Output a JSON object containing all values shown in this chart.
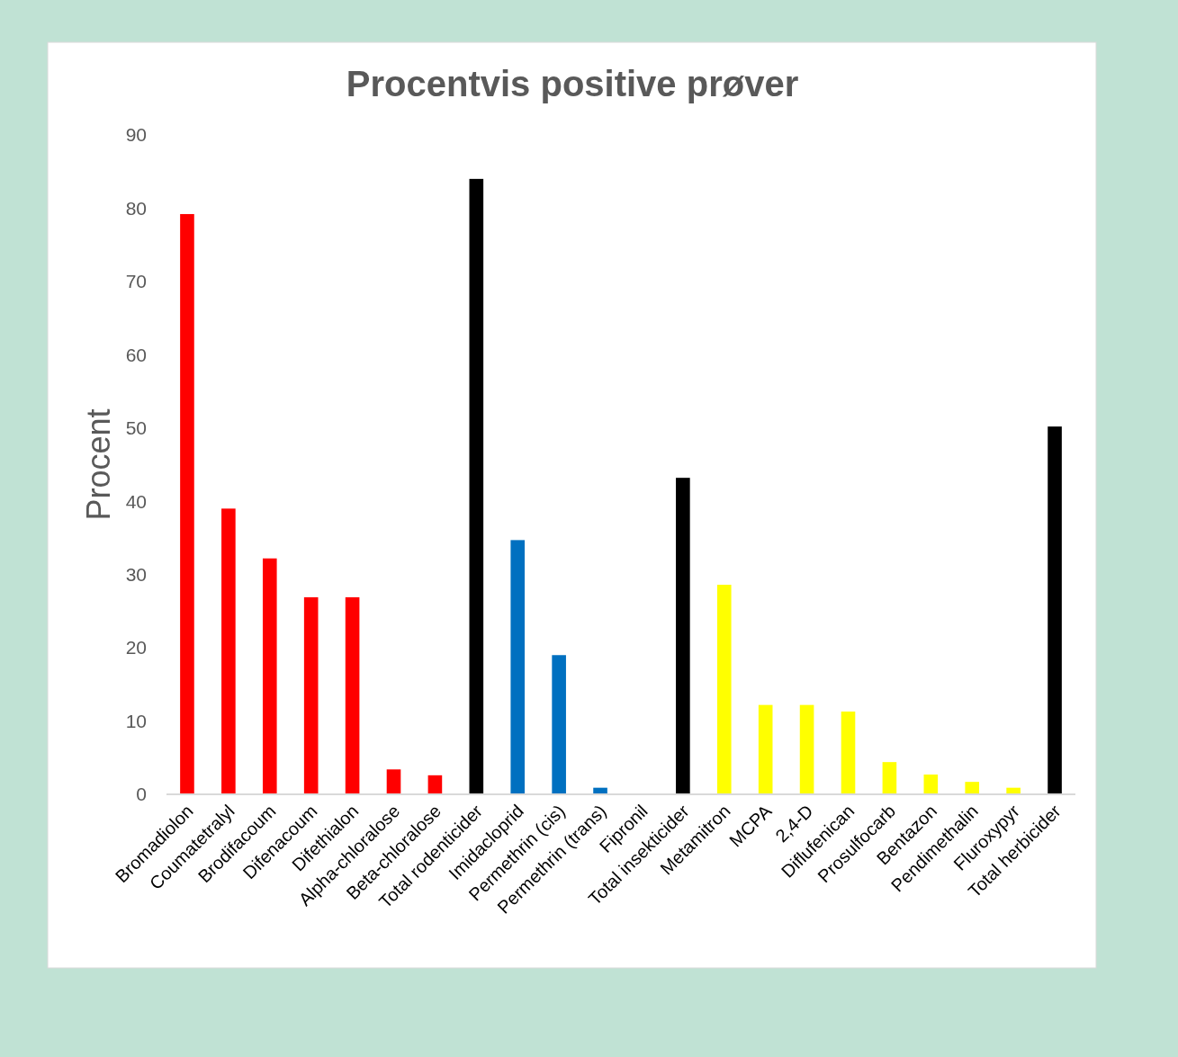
{
  "chart_data": {
    "type": "bar",
    "title": "Procentvis positive prøver",
    "ylabel": "Procent",
    "categories": [
      "Bromadiolon",
      "Coumatetralyl",
      "Brodifacoum",
      "Difenacoum",
      "Difethialon",
      "Alpha-chloralose",
      "Beta-chloralose",
      "Total rodenticider",
      "Imidacloprid",
      "Permethrin (cis)",
      "Permethrin (trans)",
      "Fipronil",
      "Total insekticider",
      "Metamitron",
      "MCPA",
      "2,4-D",
      "Diflufenican",
      "Prosulfocarb",
      "Bentazon",
      "Pendimethalin",
      "Fluroxypyr",
      "Total herbicider"
    ],
    "values": [
      79.2,
      39,
      32.2,
      26.9,
      26.9,
      3.4,
      2.6,
      84,
      34.7,
      19,
      0.9,
      0,
      43.2,
      28.6,
      12.2,
      12.2,
      11.3,
      4.4,
      2.7,
      1.7,
      0.9,
      50.2
    ],
    "colors": [
      "#ff0000",
      "#ff0000",
      "#ff0000",
      "#ff0000",
      "#ff0000",
      "#ff0000",
      "#ff0000",
      "#000000",
      "#0070c0",
      "#0070c0",
      "#0070c0",
      "#0070c0",
      "#000000",
      "#ffff00",
      "#ffff00",
      "#ffff00",
      "#ffff00",
      "#ffff00",
      "#ffff00",
      "#ffff00",
      "#ffff00",
      "#000000"
    ],
    "ylim": [
      0,
      90
    ],
    "yticks": [
      0,
      10,
      20,
      30,
      40,
      50,
      60,
      70,
      80,
      90
    ],
    "grid": false
  }
}
